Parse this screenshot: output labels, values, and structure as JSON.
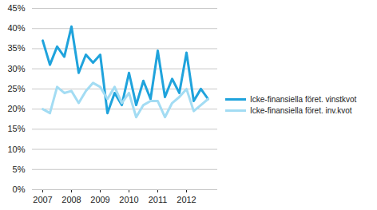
{
  "chart_data": {
    "type": "line",
    "categories": [
      "2007",
      null,
      null,
      null,
      "2008",
      null,
      null,
      null,
      "2009",
      null,
      null,
      null,
      "2010",
      null,
      null,
      null,
      "2011",
      null,
      null,
      null,
      "2012",
      null,
      null,
      null
    ],
    "series": [
      {
        "name": "Icke-finansiella föret. vinstkvot",
        "color": "#1fa3dc",
        "values": [
          37,
          31,
          35.5,
          33,
          40.5,
          29,
          33.5,
          31.5,
          33.5,
          19,
          24,
          21,
          29,
          21,
          27,
          22.5,
          34.5,
          23,
          27.5,
          24,
          34,
          22,
          25,
          22.5
        ]
      },
      {
        "name": "Icke-finansiella föret. inv.kvot",
        "color": "#a3dcf3",
        "values": [
          20,
          19,
          25.5,
          24,
          24.5,
          21.5,
          24.5,
          26.5,
          25.5,
          22.5,
          25.5,
          21.5,
          24,
          18,
          21,
          22,
          22,
          18,
          21.5,
          23,
          25,
          19.5,
          21,
          22.5
        ]
      }
    ],
    "ylim": [
      0,
      45
    ],
    "yticks": [
      {
        "value": 0,
        "label": "0%"
      },
      {
        "value": 5,
        "label": "5%"
      },
      {
        "value": 10,
        "label": "10%"
      },
      {
        "value": 15,
        "label": "15%"
      },
      {
        "value": 20,
        "label": "20%"
      },
      {
        "value": 25,
        "label": "25%"
      },
      {
        "value": 30,
        "label": "30%"
      },
      {
        "value": 35,
        "label": "35%"
      },
      {
        "value": 40,
        "label": "40%"
      },
      {
        "value": 45,
        "label": "45%"
      }
    ],
    "grid": true,
    "legend": "right"
  }
}
